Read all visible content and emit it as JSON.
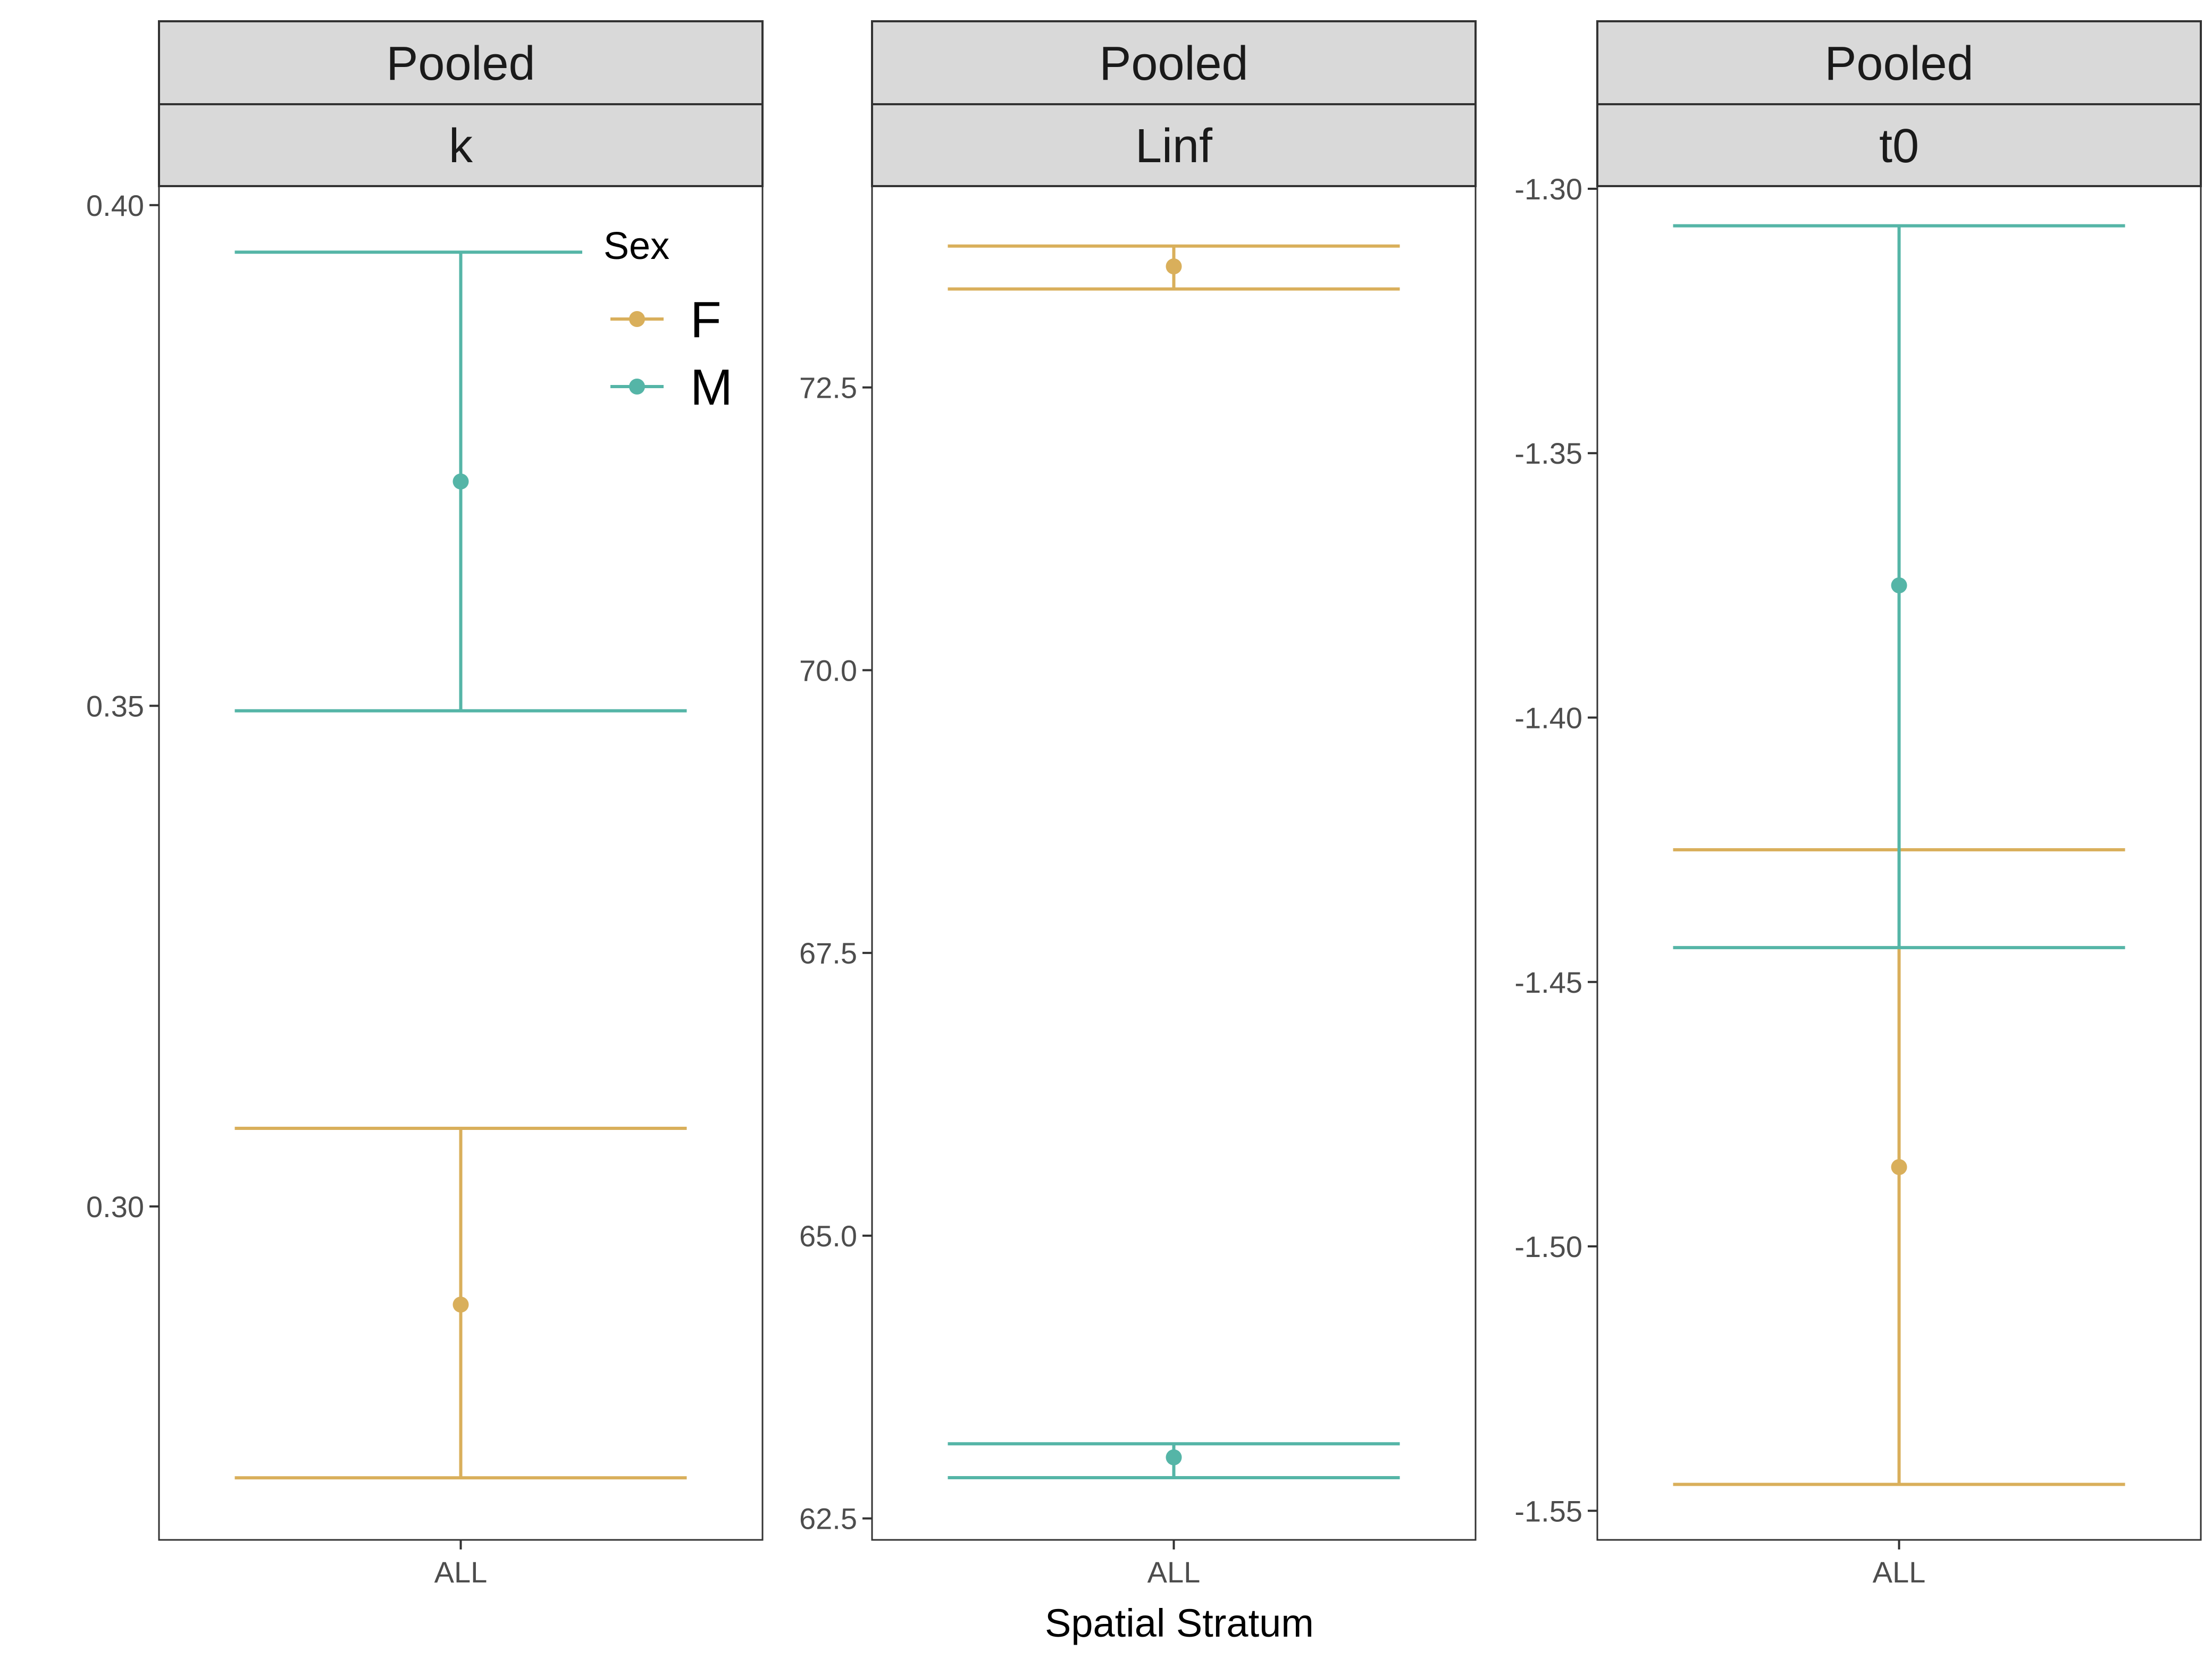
{
  "chart_data": {
    "type": "errorbar",
    "xlabel": "Spatial Stratum",
    "categories": [
      "ALL"
    ],
    "colors": {
      "F": "#D9AF5B",
      "M": "#55B5A7"
    },
    "legend": {
      "title": "Sex",
      "entries": [
        "F",
        "M"
      ],
      "placement": "inside top-right of first panel"
    },
    "grid": false,
    "panels": [
      {
        "strip_top": "Pooled",
        "strip_bottom": "k",
        "ylim": [
          0.2667,
          0.4019
        ],
        "yticks": [
          0.3,
          0.35,
          0.4
        ],
        "ytick_labels": [
          "0.30",
          "0.35",
          "0.40"
        ],
        "series": [
          {
            "name": "F",
            "x": "ALL",
            "estimate": 0.2902,
            "lower": 0.2729,
            "upper": 0.3078
          },
          {
            "name": "M",
            "x": "ALL",
            "estimate": 0.3724,
            "lower": 0.3495,
            "upper": 0.3953
          }
        ]
      },
      {
        "strip_top": "Pooled",
        "strip_bottom": "Linf",
        "ylim": [
          62.31,
          74.28
        ],
        "yticks": [
          62.5,
          65.0,
          67.5,
          70.0,
          72.5
        ],
        "ytick_labels": [
          "62.5",
          "65.0",
          "67.5",
          "70.0",
          "72.5"
        ],
        "series": [
          {
            "name": "F",
            "x": "ALL",
            "estimate": 73.57,
            "lower": 73.37,
            "upper": 73.75
          },
          {
            "name": "M",
            "x": "ALL",
            "estimate": 63.04,
            "lower": 62.86,
            "upper": 63.16
          }
        ]
      },
      {
        "strip_top": "Pooled",
        "strip_bottom": "t0",
        "ylim": [
          -1.5555,
          -1.2995
        ],
        "yticks": [
          -1.3,
          -1.35,
          -1.4,
          -1.45,
          -1.5,
          -1.55
        ],
        "ytick_labels": [
          "-1.30",
          "-1.35",
          "-1.40",
          "-1.45",
          "-1.50",
          "-1.55"
        ],
        "series": [
          {
            "name": "F",
            "x": "ALL",
            "estimate": -1.485,
            "lower": -1.545,
            "upper": -1.425
          },
          {
            "name": "M",
            "x": "ALL",
            "estimate": -1.375,
            "lower": -1.4435,
            "upper": -1.307
          }
        ]
      }
    ]
  }
}
